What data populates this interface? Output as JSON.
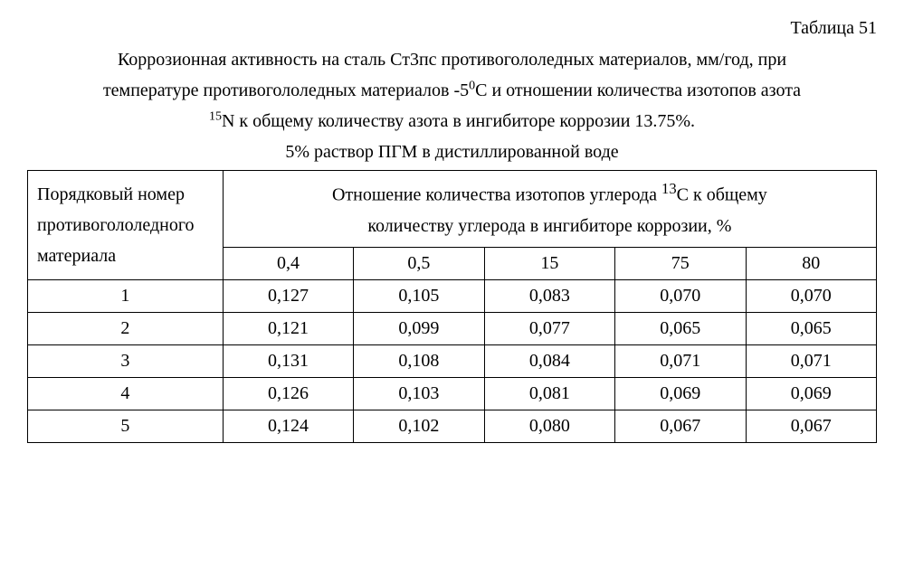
{
  "table_label": "Таблица 51",
  "caption_line1": "Коррозионная активность на сталь Ст3пс противогололедных материалов, мм/год, при",
  "caption_line2_a": "температуре противогололедных материалов -5",
  "caption_line2_sup": "0",
  "caption_line2_b": "С и отношении количества изотопов азота",
  "caption_line3_sup": "15",
  "caption_line3_a": "N  к общему количеству азота в ингибиторе коррозии 13.75%.",
  "solution_line": "5% раствор ПГМ в дистиллированной воде",
  "row_header_a": "Порядковый номер",
  "row_header_b": "противогололедного",
  "row_header_c": "материала",
  "col_header_top_a": "Отношение количества изотопов углерода ",
  "col_header_top_sup": "13",
  "col_header_top_b": "С к общему",
  "col_header_top_c": "количеству углерода в ингибиторе коррозии, %",
  "columns": [
    "0,4",
    "0,5",
    "15",
    "75",
    "80"
  ],
  "rows": [
    {
      "n": "1",
      "v": [
        "0,127",
        "0,105",
        "0,083",
        "0,070",
        "0,070"
      ]
    },
    {
      "n": "2",
      "v": [
        "0,121",
        "0,099",
        "0,077",
        "0,065",
        "0,065"
      ]
    },
    {
      "n": "3",
      "v": [
        "0,131",
        "0,108",
        "0,084",
        "0,071",
        "0,071"
      ]
    },
    {
      "n": "4",
      "v": [
        "0,126",
        "0,103",
        "0,081",
        "0,069",
        "0,069"
      ]
    },
    {
      "n": "5",
      "v": [
        "0,124",
        "0,102",
        "0,080",
        "0,067",
        "0,067"
      ]
    }
  ],
  "style": {
    "font_family": "Times New Roman",
    "font_size_pt": 15,
    "border_color": "#000000",
    "background": "#ffffff",
    "text_color": "#000000"
  }
}
